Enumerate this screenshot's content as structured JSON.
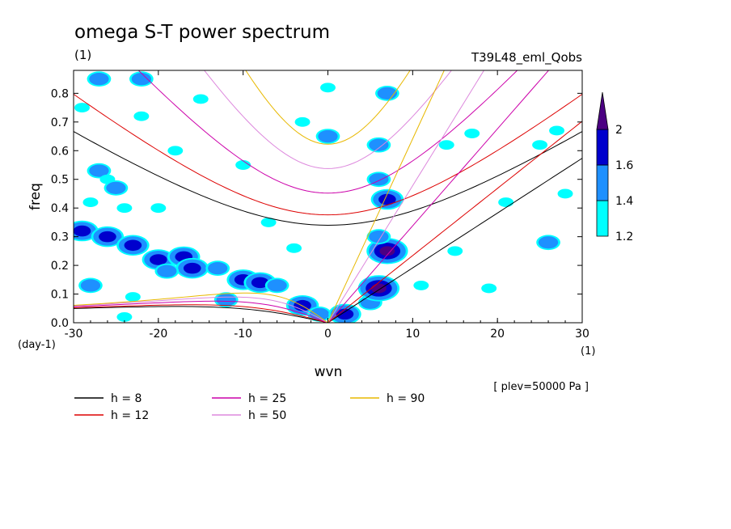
{
  "chart_data": {
    "type": "heatmap",
    "title": "omega S-T power spectrum",
    "units": "(1)",
    "run": "T39L48_eml_Qobs",
    "xlabel": "wvn",
    "ylabel": "freq",
    "y_unit": "(day-1)",
    "x_unit": "(1)",
    "level_note": "[ plev=50000 Pa ]",
    "xlim": [
      -30,
      30
    ],
    "ylim": [
      0,
      0.88
    ],
    "xticks": [
      -30,
      -20,
      -10,
      0,
      10,
      20,
      30
    ],
    "yticks": [
      0.0,
      0.1,
      0.2,
      0.3,
      0.4,
      0.5,
      0.6,
      0.7,
      0.8
    ],
    "xtick_labels": [
      "-30",
      "-20",
      "-10",
      "0",
      "10",
      "20",
      "30"
    ],
    "ytick_labels": [
      "0.0",
      "0.1",
      "0.2",
      "0.3",
      "0.4",
      "0.5",
      "0.6",
      "0.7",
      "0.8"
    ],
    "colorbar": {
      "levels": [
        1.2,
        1.4,
        1.6,
        2
      ],
      "labels": [
        "1.2",
        "1.4",
        "1.6",
        "2"
      ],
      "colors": [
        "#00ffff",
        "#1e90ff",
        "#0000cd",
        "#4b0082"
      ]
    },
    "contour_blobs": [
      {
        "x": -27,
        "y": 0.53,
        "level": 2
      },
      {
        "x": -26,
        "y": 0.5,
        "level": 1
      },
      {
        "x": -25,
        "y": 0.47,
        "level": 2
      },
      {
        "x": -28,
        "y": 0.42,
        "level": 1
      },
      {
        "x": -24,
        "y": 0.4,
        "level": 1
      },
      {
        "x": -20,
        "y": 0.4,
        "level": 1
      },
      {
        "x": -29,
        "y": 0.32,
        "level": 3
      },
      {
        "x": -26,
        "y": 0.3,
        "level": 3
      },
      {
        "x": -23,
        "y": 0.27,
        "level": 3
      },
      {
        "x": -20,
        "y": 0.22,
        "level": 3
      },
      {
        "x": -17,
        "y": 0.23,
        "level": 3
      },
      {
        "x": -16,
        "y": 0.19,
        "level": 3
      },
      {
        "x": -19,
        "y": 0.18,
        "level": 2
      },
      {
        "x": -13,
        "y": 0.19,
        "level": 2
      },
      {
        "x": -10,
        "y": 0.15,
        "level": 3
      },
      {
        "x": -8,
        "y": 0.14,
        "level": 3
      },
      {
        "x": -6,
        "y": 0.13,
        "level": 2
      },
      {
        "x": -3,
        "y": 0.06,
        "level": 3
      },
      {
        "x": -1,
        "y": 0.03,
        "level": 2
      },
      {
        "x": 2,
        "y": 0.03,
        "level": 3
      },
      {
        "x": 5,
        "y": 0.07,
        "level": 2
      },
      {
        "x": 6,
        "y": 0.12,
        "level": 4
      },
      {
        "x": 7,
        "y": 0.25,
        "level": 4
      },
      {
        "x": 6,
        "y": 0.3,
        "level": 2
      },
      {
        "x": 7,
        "y": 0.43,
        "level": 3
      },
      {
        "x": 6,
        "y": 0.5,
        "level": 2
      },
      {
        "x": 6,
        "y": 0.62,
        "level": 2
      },
      {
        "x": 7,
        "y": 0.8,
        "level": 2
      },
      {
        "x": -22,
        "y": 0.72,
        "level": 1
      },
      {
        "x": -15,
        "y": 0.78,
        "level": 1
      },
      {
        "x": -10,
        "y": 0.55,
        "level": 1
      },
      {
        "x": -7,
        "y": 0.35,
        "level": 1
      },
      {
        "x": -12,
        "y": 0.08,
        "level": 2
      },
      {
        "x": -23,
        "y": 0.09,
        "level": 1
      },
      {
        "x": -28,
        "y": 0.13,
        "level": 2
      },
      {
        "x": -27,
        "y": 0.85,
        "level": 2
      },
      {
        "x": -22,
        "y": 0.85,
        "level": 2
      },
      {
        "x": -29,
        "y": 0.75,
        "level": 1
      },
      {
        "x": 0,
        "y": 0.65,
        "level": 2
      },
      {
        "x": 0,
        "y": 0.82,
        "level": 1
      },
      {
        "x": 14,
        "y": 0.62,
        "level": 1
      },
      {
        "x": 17,
        "y": 0.66,
        "level": 1
      },
      {
        "x": 25,
        "y": 0.62,
        "level": 1
      },
      {
        "x": 27,
        "y": 0.67,
        "level": 1
      },
      {
        "x": 26,
        "y": 0.28,
        "level": 2
      },
      {
        "x": 21,
        "y": 0.42,
        "level": 1
      },
      {
        "x": 28,
        "y": 0.45,
        "level": 1
      },
      {
        "x": -18,
        "y": 0.6,
        "level": 1
      },
      {
        "x": -3,
        "y": 0.7,
        "level": 1
      },
      {
        "x": 15,
        "y": 0.25,
        "level": 1
      },
      {
        "x": -4,
        "y": 0.26,
        "level": 1
      },
      {
        "x": 11,
        "y": 0.13,
        "level": 1
      },
      {
        "x": 19,
        "y": 0.12,
        "level": 1
      },
      {
        "x": -24,
        "y": 0.02,
        "level": 1
      }
    ],
    "series": [
      {
        "name": "h =  8",
        "color": "#000000",
        "label": "h =  8"
      },
      {
        "name": "h = 12",
        "color": "#dd0000",
        "label": "h = 12"
      },
      {
        "name": "h = 25",
        "color": "#cc00aa",
        "label": "h = 25"
      },
      {
        "name": "h = 50",
        "color": "#dd88dd",
        "label": "h = 50"
      },
      {
        "name": "h = 90",
        "color": "#e8b800",
        "label": "h = 90"
      }
    ]
  }
}
